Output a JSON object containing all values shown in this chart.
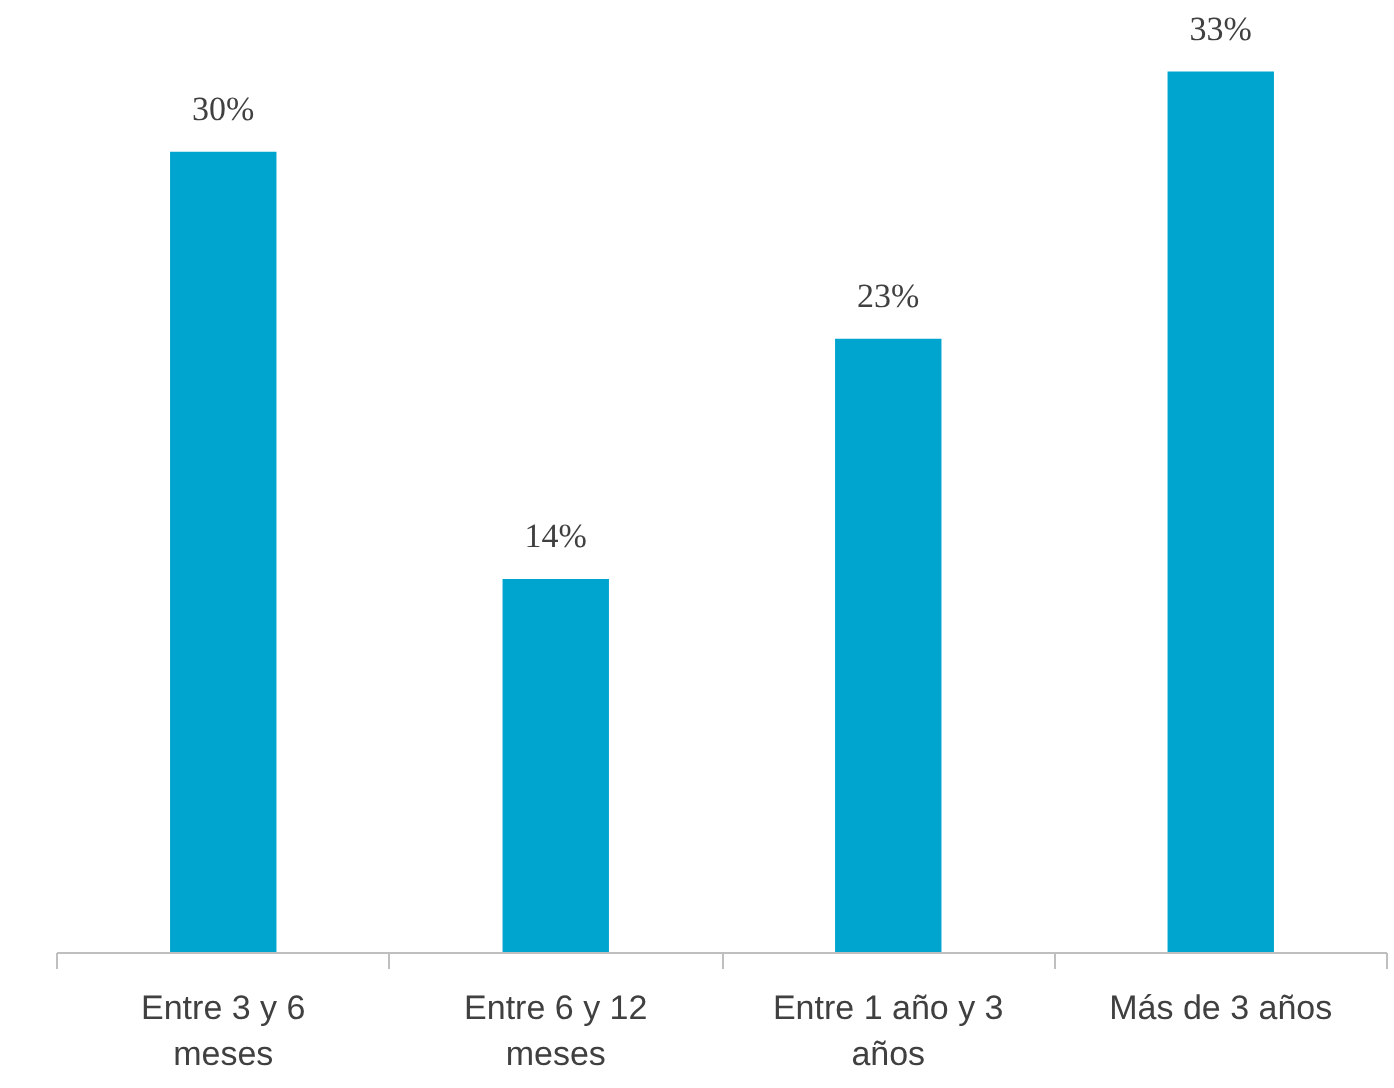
{
  "chart_data": {
    "type": "bar",
    "categories": [
      "Entre 3 y 6 meses",
      "Entre 6 y 12 meses",
      "Entre 1 año y 3 años",
      "Más de 3 años"
    ],
    "values": [
      30,
      14,
      23,
      33
    ],
    "value_labels": [
      "30%",
      "14%",
      "23%",
      "33%"
    ],
    "color": "#00a5cf"
  }
}
